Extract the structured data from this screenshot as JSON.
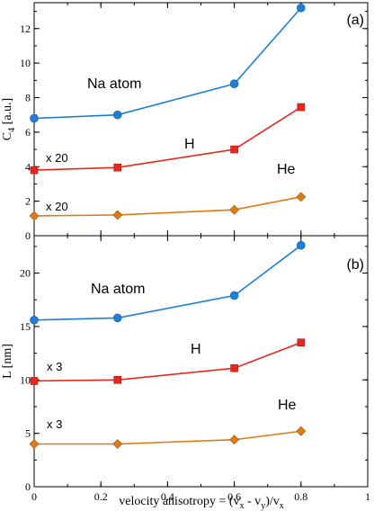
{
  "chart_data": [
    {
      "type": "line",
      "panel_label": "(a)",
      "ylabel": "C4 [a.u.]",
      "ylabel_main": "C",
      "ylabel_sub": "4",
      "ylabel_unit": " [a.u.]",
      "xlim": [
        0,
        1
      ],
      "ylim": [
        0,
        13.5
      ],
      "yticks": [
        0,
        2,
        4,
        6,
        8,
        10,
        12
      ],
      "xticks": [
        0,
        0.2,
        0.4,
        0.6,
        0.8,
        1
      ],
      "show_xtick_labels": false,
      "x": [
        0,
        0.25,
        0.6,
        0.8
      ],
      "series": [
        {
          "name": "Na atom",
          "color": "#1f7fd6",
          "marker": "circle",
          "values": [
            6.8,
            7.0,
            8.8,
            13.2
          ]
        },
        {
          "name": "H",
          "color": "#e8281f",
          "marker": "square",
          "values": [
            3.8,
            3.95,
            5.0,
            7.45
          ]
        },
        {
          "name": "He",
          "color": "#e07a12",
          "marker": "diamond",
          "values": [
            1.15,
            1.2,
            1.5,
            2.25
          ]
        }
      ],
      "annotations": [
        {
          "text": "Na atom",
          "series": "Na atom"
        },
        {
          "text": "H",
          "series": "H"
        },
        {
          "text": "He",
          "series": "He"
        },
        {
          "text": "x 20",
          "series": "H"
        },
        {
          "text": "x 20",
          "series": "He"
        }
      ]
    },
    {
      "type": "line",
      "panel_label": "(b)",
      "ylabel": "L [nm]",
      "xlabel": "velocity anisotropy = (vx - vy)/vx",
      "xlim": [
        0,
        1
      ],
      "ylim": [
        0,
        23.5
      ],
      "yticks": [
        0,
        5,
        10,
        15,
        20
      ],
      "xticks": [
        0,
        0.2,
        0.4,
        0.6,
        0.8,
        1
      ],
      "show_xtick_labels": true,
      "x": [
        0,
        0.25,
        0.6,
        0.8
      ],
      "series": [
        {
          "name": "Na atom",
          "color": "#1f7fd6",
          "marker": "circle",
          "values": [
            15.6,
            15.8,
            17.9,
            22.6
          ]
        },
        {
          "name": "H",
          "color": "#e8281f",
          "marker": "square",
          "values": [
            9.9,
            10.0,
            11.1,
            13.5
          ]
        },
        {
          "name": "He",
          "color": "#e07a12",
          "marker": "diamond",
          "values": [
            4.0,
            4.0,
            4.4,
            5.2
          ]
        }
      ],
      "annotations": [
        {
          "text": "Na atom",
          "series": "Na atom"
        },
        {
          "text": "H",
          "series": "H"
        },
        {
          "text": "He",
          "series": "He"
        },
        {
          "text": "x 3",
          "series": "H"
        },
        {
          "text": "x 3",
          "series": "He"
        }
      ]
    }
  ],
  "xlabel_parts": {
    "prefix": "velocity anisotropy = (v",
    "sub1": "x",
    "mid": " - v",
    "sub2": "y",
    "close": ")/v",
    "sub3": "x"
  }
}
